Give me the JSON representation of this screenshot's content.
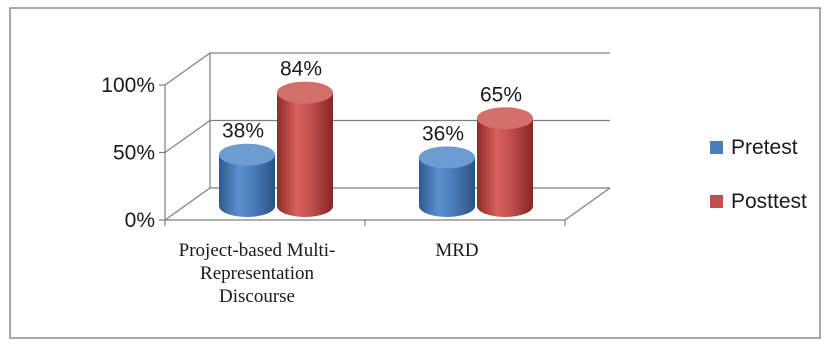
{
  "chart_data": {
    "type": "bar",
    "style": "3d-cylinder",
    "categories": [
      "Project-based Multi-Representation Discourse",
      "MRD"
    ],
    "category_label_lines": [
      [
        "Project-based Multi-",
        "Representation",
        "Discourse"
      ],
      [
        "MRD"
      ]
    ],
    "series": [
      {
        "name": "Pretest",
        "values": [
          38,
          36
        ],
        "data_labels": [
          "38%",
          "36%"
        ],
        "color": "#4a7ebb"
      },
      {
        "name": "Posttest",
        "values": [
          84,
          65
        ],
        "data_labels": [
          "84%",
          "65%"
        ],
        "color": "#c0504d"
      }
    ],
    "ylim": [
      0,
      100
    ],
    "y_ticks": [
      {
        "value": 0,
        "label": "0%"
      },
      {
        "value": 50,
        "label": "50%"
      },
      {
        "value": 100,
        "label": "100%"
      }
    ],
    "grid": true,
    "legend_position": "right",
    "title": "",
    "xlabel": "",
    "ylabel": ""
  }
}
